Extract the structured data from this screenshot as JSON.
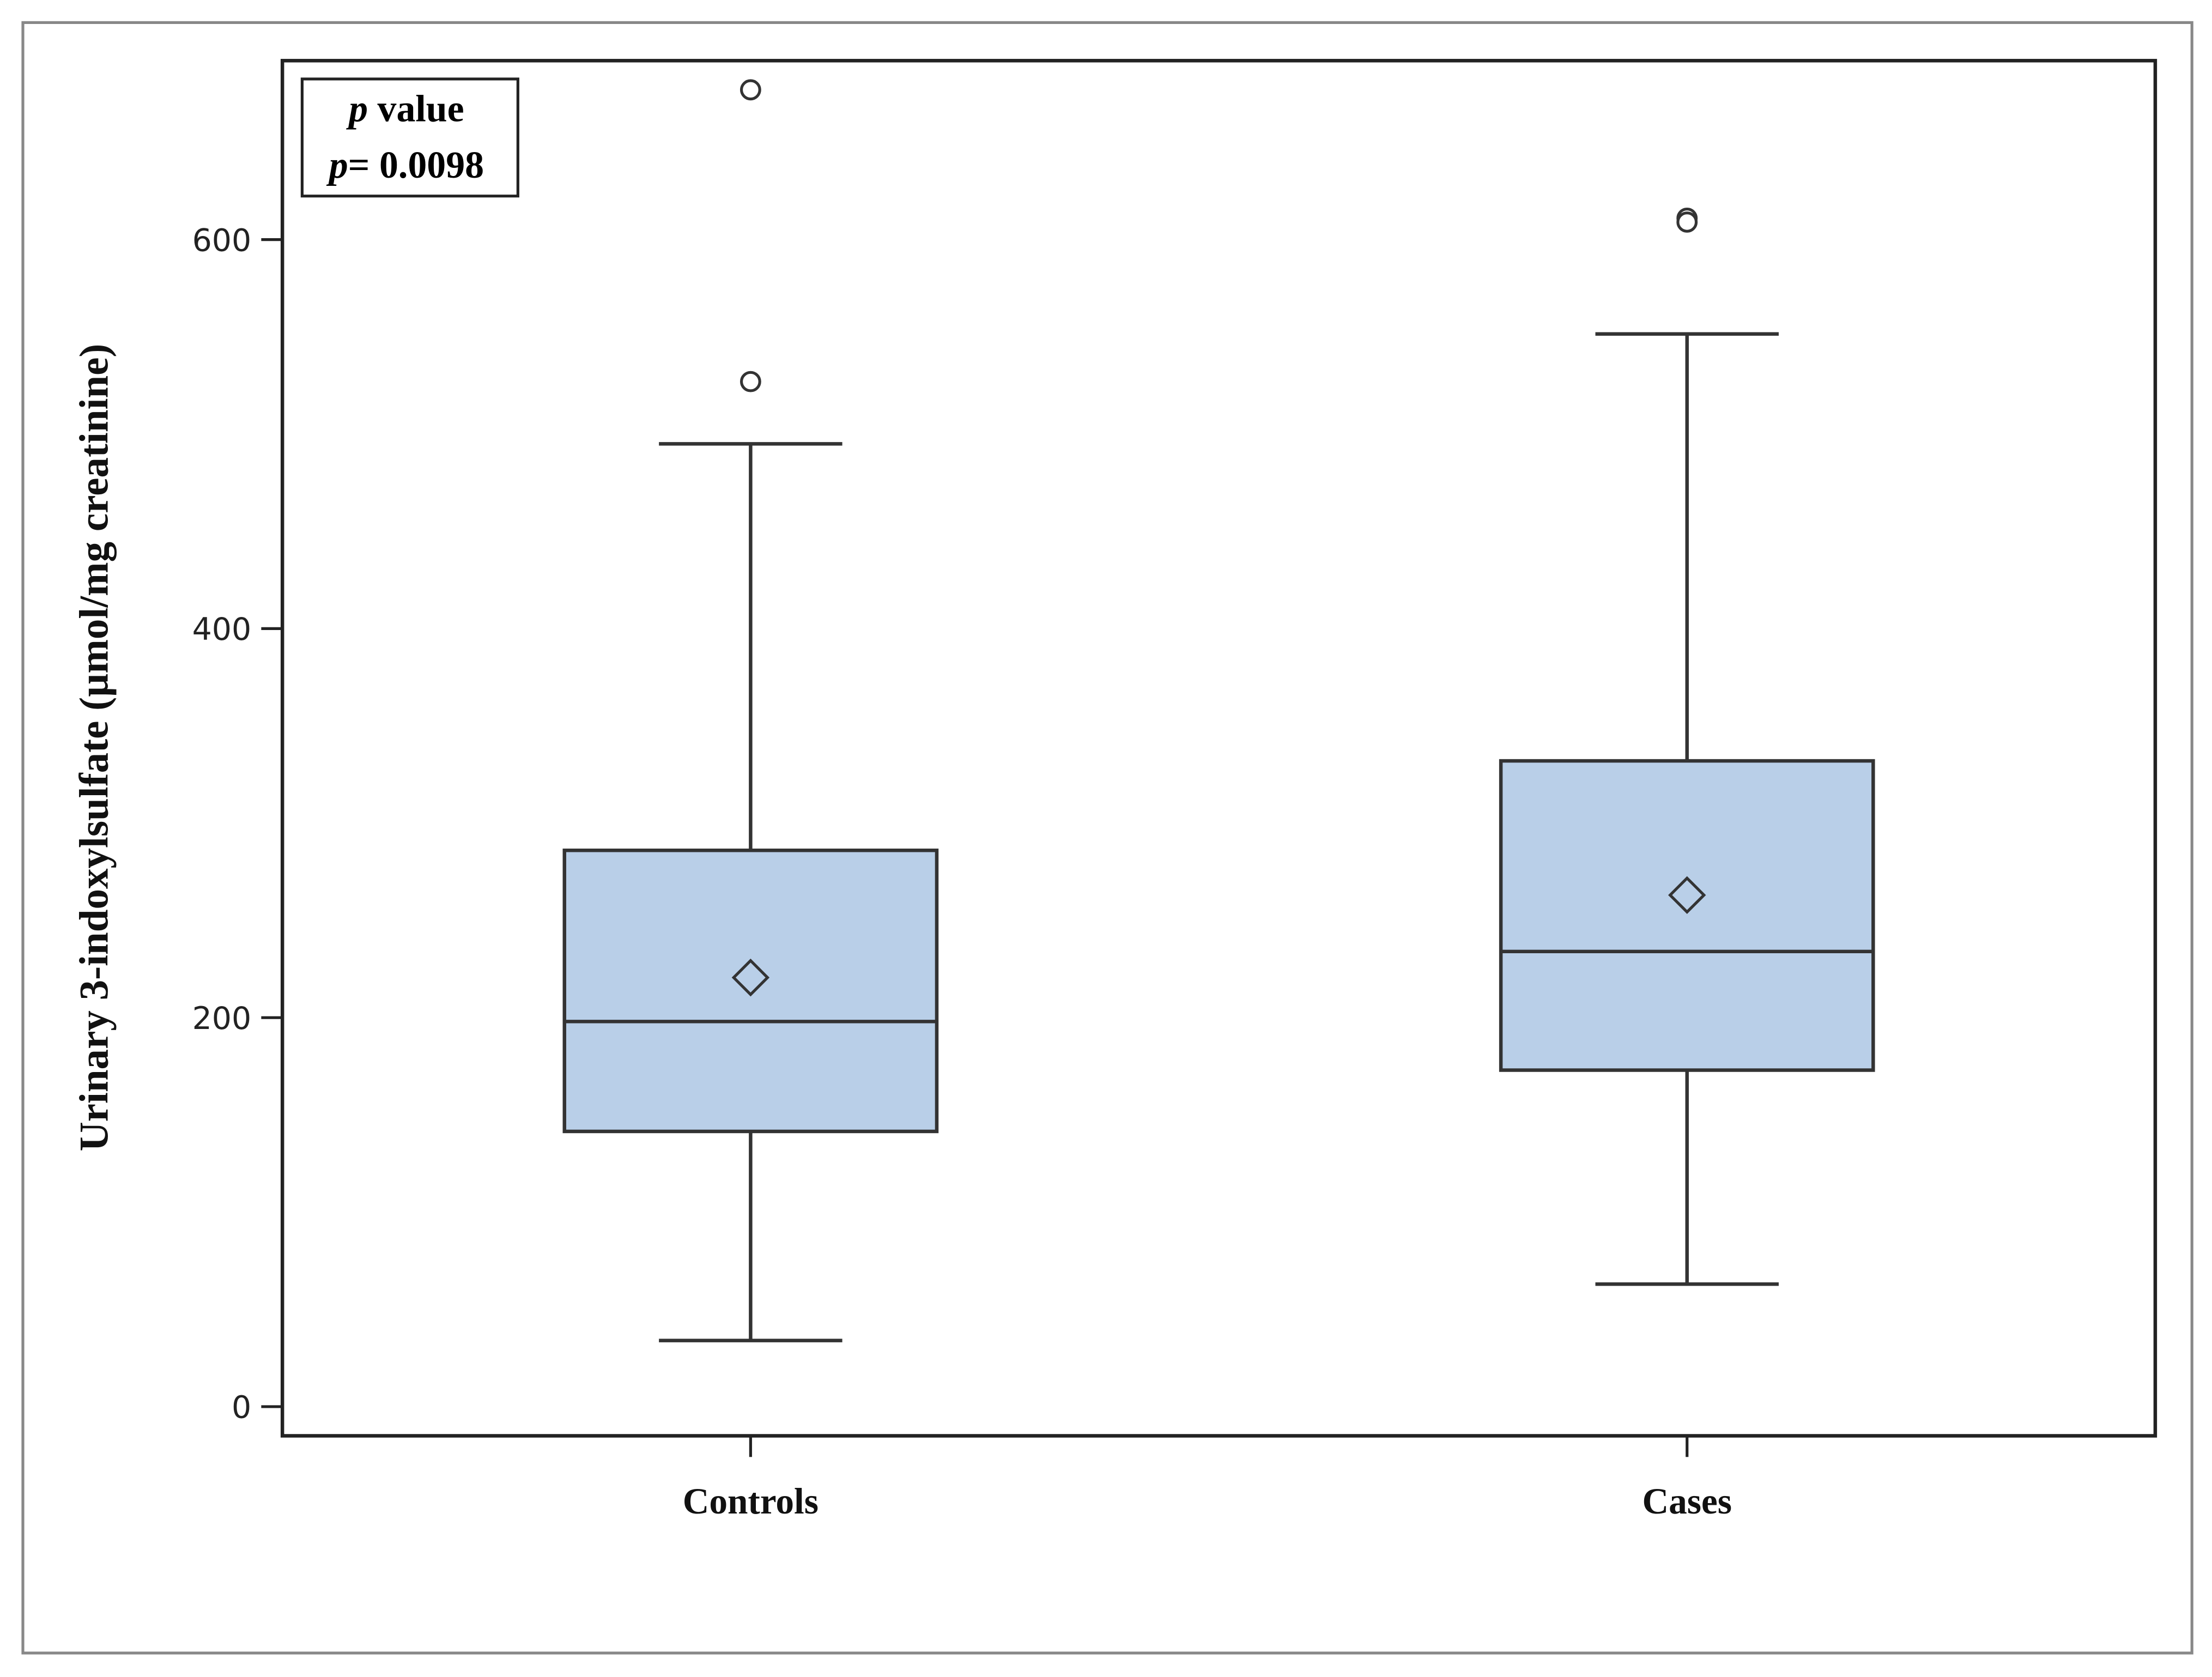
{
  "chart_data": {
    "type": "box",
    "y_label": "Urinary 3-indoxylsulfate (µmol/mg creatinine)",
    "annotation": {
      "title": "p value",
      "text": "p= 0.0098"
    },
    "categories": [
      "Controls",
      "Cases"
    ],
    "boxes": [
      {
        "whisker_low": 34,
        "q1": 141.5,
        "median": 198,
        "q3": 286,
        "whisker_high": 495,
        "mean": 220.6,
        "outliers": [
          677,
          527
        ]
      },
      {
        "whisker_low": 63,
        "q1": 173,
        "median": 234,
        "q3": 332,
        "whisker_high": 551.5,
        "mean": 263,
        "outliers": [
          611,
          609
        ]
      }
    ],
    "color": "#b9cfe8",
    "ylim": [
      -15,
      692
    ],
    "yticks": [
      0,
      200,
      400,
      600
    ]
  }
}
